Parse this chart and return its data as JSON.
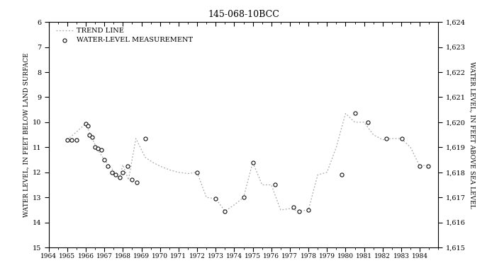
{
  "title": "145-068-10BCC",
  "ylabel_left": "WATER LEVEL, IN FEET BELOW LAND SURFACE",
  "ylabel_right": "WATER LEVEL, IN FEET ABOVE SEA LEVEL",
  "xlim": [
    1964,
    1985
  ],
  "ylim_left": [
    15,
    6
  ],
  "ylim_right": [
    1615,
    1624
  ],
  "yticks_left": [
    6,
    7,
    8,
    9,
    10,
    11,
    12,
    13,
    14,
    15
  ],
  "yticks_right": [
    1615,
    1616,
    1617,
    1618,
    1619,
    1620,
    1621,
    1622,
    1623,
    1624
  ],
  "xticks": [
    1964,
    1965,
    1966,
    1967,
    1968,
    1969,
    1970,
    1971,
    1972,
    1973,
    1974,
    1975,
    1976,
    1977,
    1978,
    1979,
    1980,
    1981,
    1982,
    1983,
    1984
  ],
  "bg_color": "#ffffff",
  "line_color": "#aaaaaa",
  "scatter_facecolor": "white",
  "scatter_edgecolor": "#111111",
  "legend_trend_label": "TREND LINE",
  "legend_scatter_label": "WATER-LEVEL MEASUREMENT",
  "trend_data": [
    [
      1965.0,
      10.7
    ],
    [
      1965.4,
      10.45
    ],
    [
      1966.0,
      10.05
    ],
    [
      1966.25,
      10.5
    ],
    [
      1966.6,
      11.05
    ],
    [
      1967.0,
      11.5
    ],
    [
      1967.4,
      11.85
    ],
    [
      1967.8,
      12.25
    ],
    [
      1968.0,
      11.7
    ],
    [
      1968.3,
      12.3
    ],
    [
      1968.7,
      10.65
    ],
    [
      1969.2,
      11.4
    ],
    [
      1969.6,
      11.6
    ],
    [
      1970.0,
      11.75
    ],
    [
      1970.5,
      11.9
    ],
    [
      1971.0,
      12.0
    ],
    [
      1971.5,
      12.05
    ],
    [
      1972.0,
      12.0
    ],
    [
      1972.5,
      13.0
    ],
    [
      1973.0,
      13.05
    ],
    [
      1973.5,
      13.55
    ],
    [
      1974.0,
      13.3
    ],
    [
      1974.5,
      13.0
    ],
    [
      1975.0,
      11.6
    ],
    [
      1975.5,
      12.5
    ],
    [
      1976.0,
      12.5
    ],
    [
      1976.5,
      13.5
    ],
    [
      1977.0,
      13.45
    ],
    [
      1977.5,
      13.55
    ],
    [
      1978.0,
      13.5
    ],
    [
      1978.5,
      12.1
    ],
    [
      1979.0,
      12.0
    ],
    [
      1979.5,
      11.0
    ],
    [
      1980.0,
      9.65
    ],
    [
      1980.5,
      10.0
    ],
    [
      1981.0,
      10.0
    ],
    [
      1981.5,
      10.5
    ],
    [
      1982.0,
      10.7
    ],
    [
      1982.5,
      10.65
    ],
    [
      1983.0,
      10.65
    ],
    [
      1983.5,
      11.0
    ],
    [
      1984.0,
      11.75
    ],
    [
      1984.5,
      11.7
    ]
  ],
  "scatter_data": [
    [
      1965.0,
      10.7
    ],
    [
      1965.25,
      10.7
    ],
    [
      1965.5,
      10.7
    ],
    [
      1966.0,
      10.05
    ],
    [
      1966.1,
      10.15
    ],
    [
      1966.2,
      10.5
    ],
    [
      1966.35,
      10.6
    ],
    [
      1966.5,
      11.0
    ],
    [
      1966.65,
      11.05
    ],
    [
      1966.85,
      11.1
    ],
    [
      1967.0,
      11.5
    ],
    [
      1967.2,
      11.75
    ],
    [
      1967.4,
      12.0
    ],
    [
      1967.6,
      12.1
    ],
    [
      1967.85,
      12.2
    ],
    [
      1968.0,
      12.0
    ],
    [
      1968.25,
      11.75
    ],
    [
      1968.5,
      12.3
    ],
    [
      1968.75,
      12.4
    ],
    [
      1969.2,
      10.65
    ],
    [
      1972.0,
      12.0
    ],
    [
      1973.0,
      13.05
    ],
    [
      1973.5,
      13.55
    ],
    [
      1974.5,
      13.0
    ],
    [
      1975.0,
      11.6
    ],
    [
      1976.2,
      12.5
    ],
    [
      1977.2,
      13.4
    ],
    [
      1977.5,
      13.55
    ],
    [
      1978.0,
      13.5
    ],
    [
      1979.8,
      12.1
    ],
    [
      1980.5,
      9.65
    ],
    [
      1981.2,
      10.0
    ],
    [
      1982.2,
      10.65
    ],
    [
      1983.05,
      10.65
    ],
    [
      1984.0,
      11.75
    ],
    [
      1984.45,
      11.75
    ]
  ]
}
